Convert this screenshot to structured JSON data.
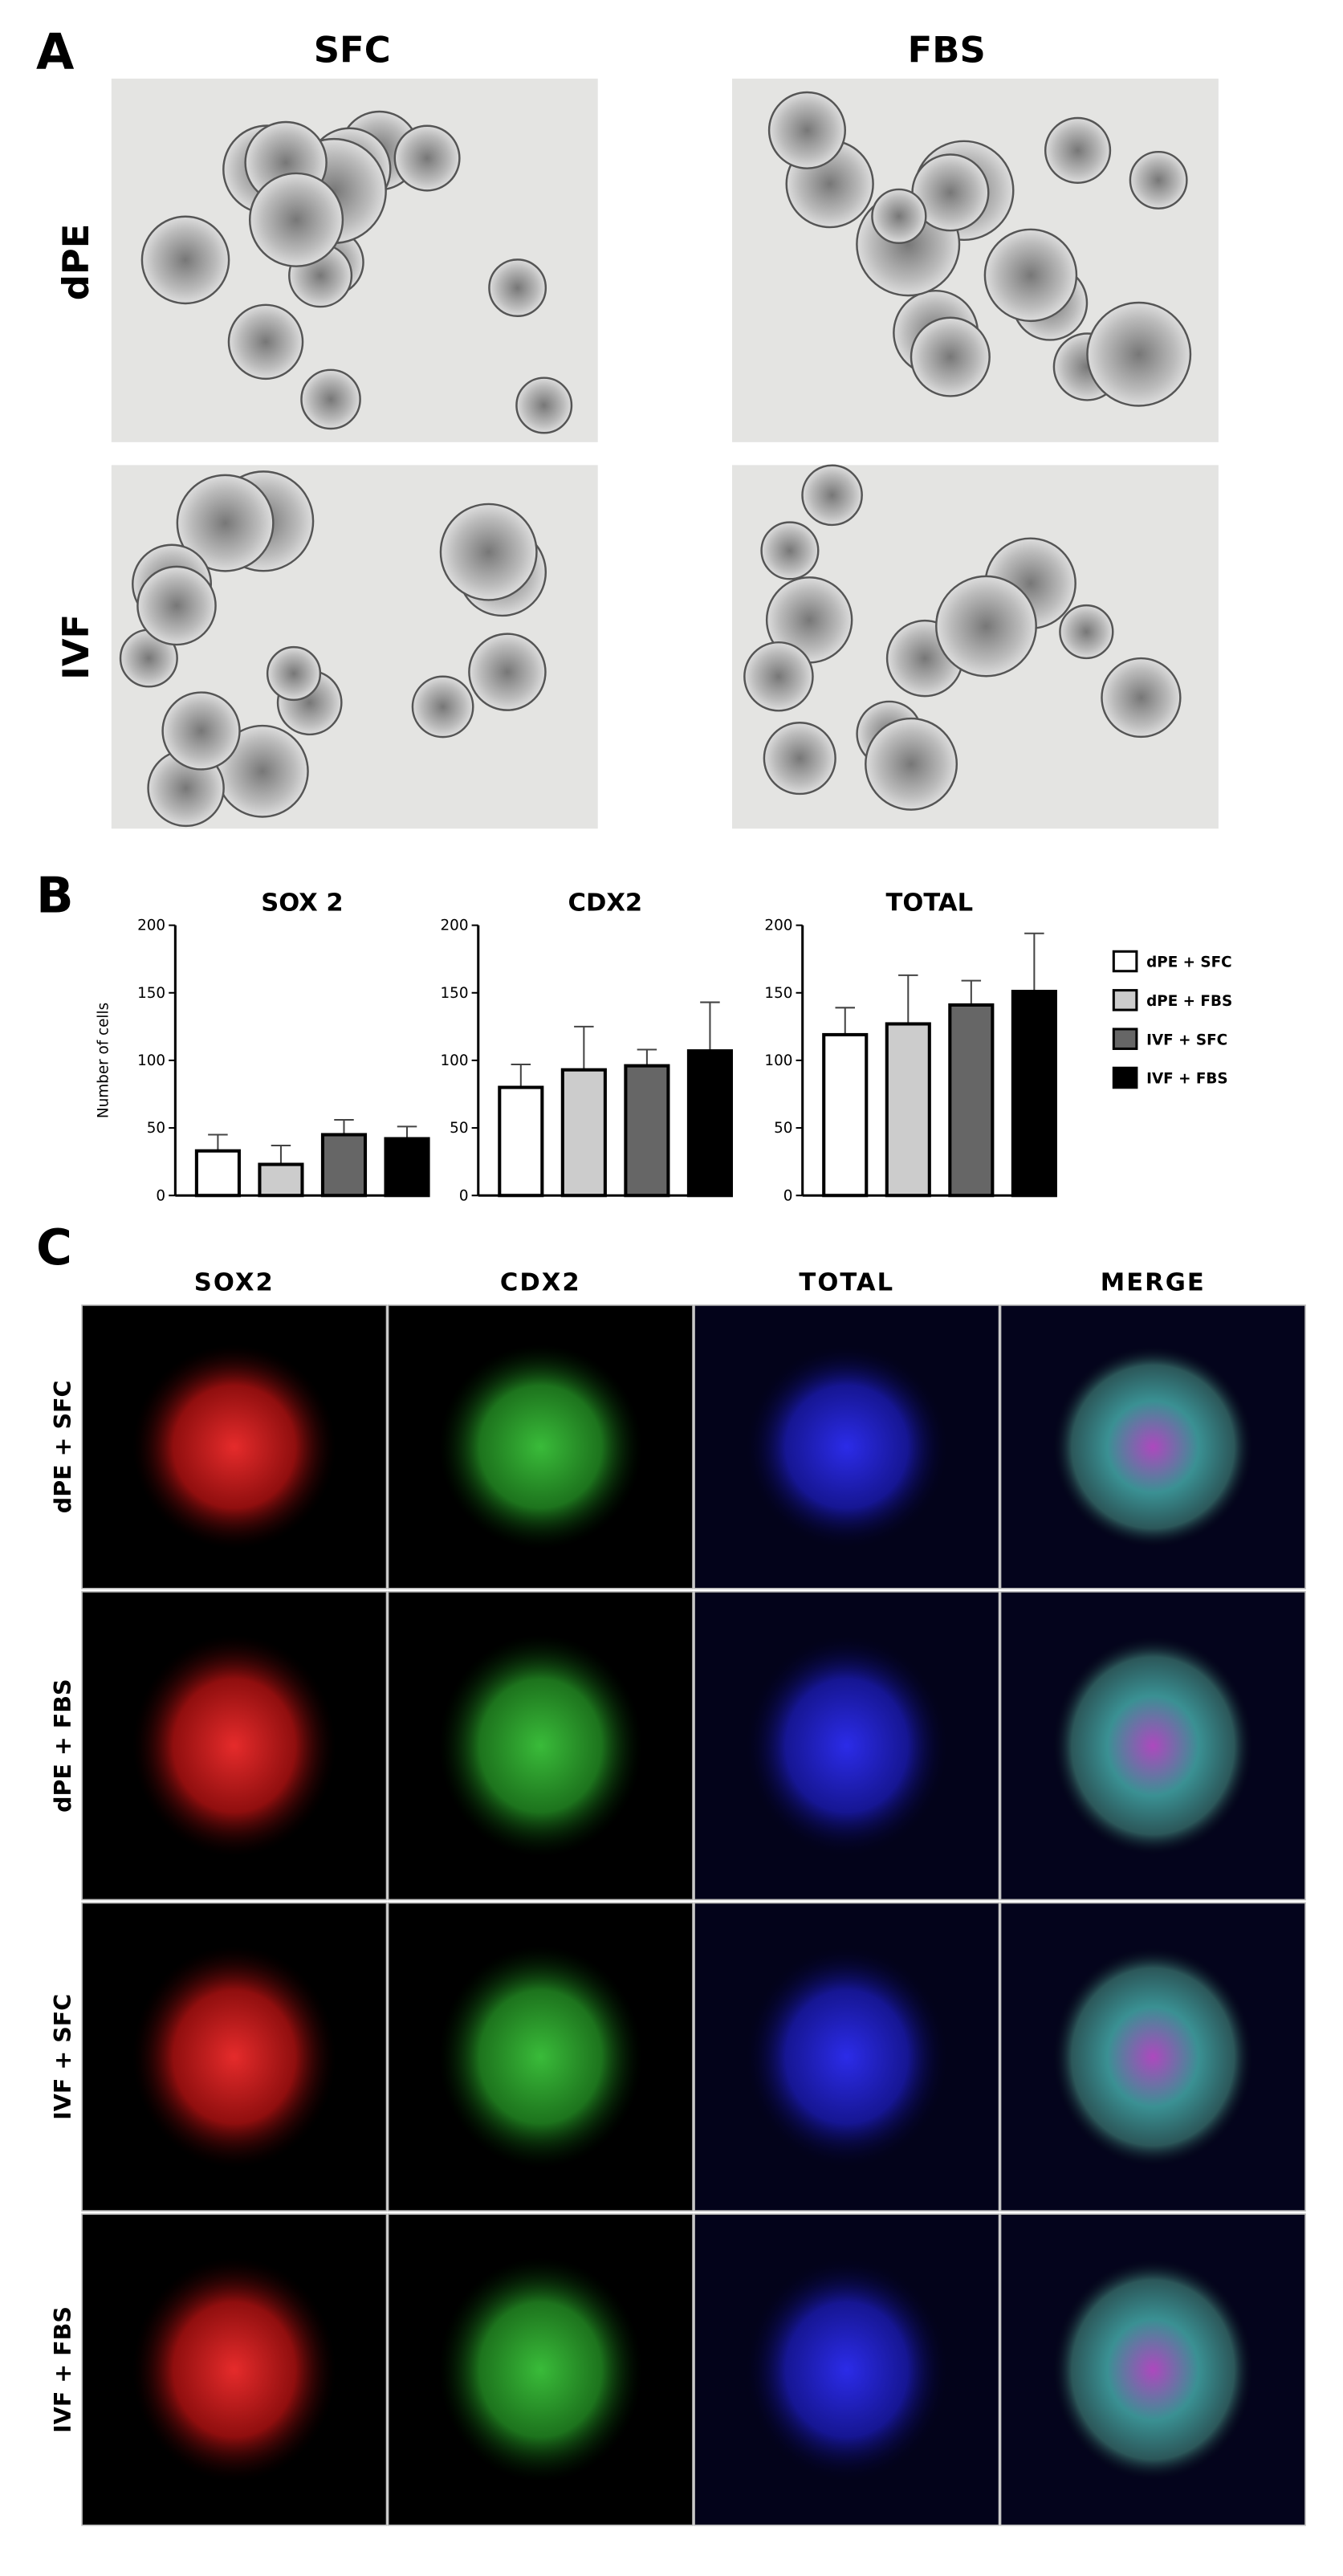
{
  "panel_a": {
    "label": "A",
    "columns": [
      "SFC",
      "FBS"
    ],
    "rows": [
      "dPE",
      "IVF"
    ]
  },
  "panel_b": {
    "label": "B"
  },
  "chart_data": [
    {
      "type": "bar",
      "title": "SOX 2",
      "ylabel": "Number of cells",
      "values": [
        33,
        23,
        45,
        42
      ],
      "errors": [
        12,
        14,
        11,
        9
      ],
      "ylim": [
        0,
        200
      ],
      "yticks": [
        0,
        50,
        100,
        150,
        200
      ]
    },
    {
      "type": "bar",
      "title": "CDX2",
      "values": [
        80,
        93,
        96,
        107
      ],
      "errors": [
        17,
        32,
        12,
        36
      ],
      "ylim": [
        0,
        200
      ],
      "yticks": [
        0,
        50,
        100,
        150,
        200
      ]
    },
    {
      "type": "bar",
      "title": "TOTAL",
      "values": [
        119,
        127,
        141,
        151
      ],
      "errors": [
        20,
        36,
        18,
        43
      ],
      "ylim": [
        0,
        200
      ],
      "yticks": [
        0,
        50,
        100,
        150,
        200
      ]
    }
  ],
  "legend": {
    "entries": [
      {
        "name": "dPE + SFC",
        "color": "#ffffff"
      },
      {
        "name": "dPE + FBS",
        "color": "#cccccc"
      },
      {
        "name": "IVF + SFC",
        "color": "#666666"
      },
      {
        "name": "IVF + FBS",
        "color": "#000000"
      }
    ]
  },
  "panel_c": {
    "label": "C",
    "columns": [
      "SOX2",
      "CDX2",
      "TOTAL",
      "MERGE"
    ],
    "rows": [
      "dPE + SFC",
      "dPE + FBS",
      "IVF + SFC",
      "IVF + FBS"
    ]
  }
}
